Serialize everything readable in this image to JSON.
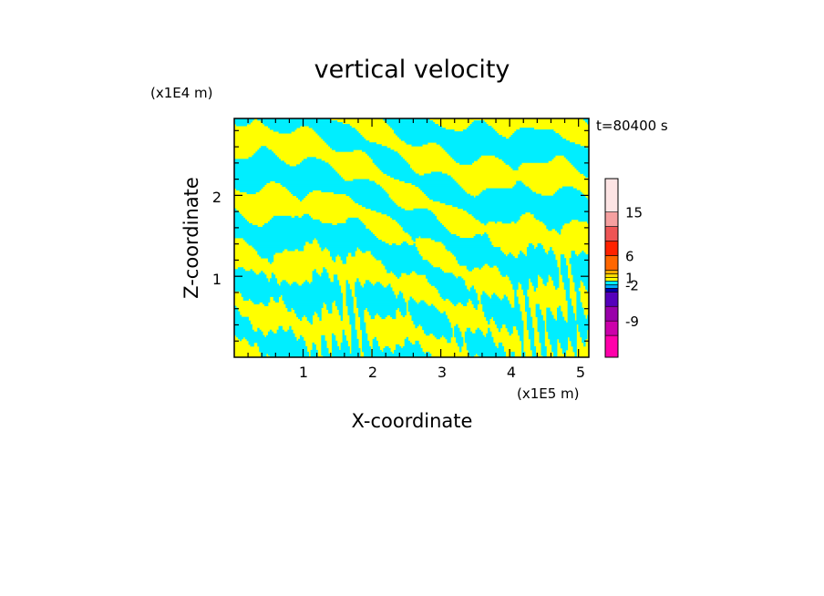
{
  "chart_data": {
    "type": "heatmap",
    "title": "vertical velocity",
    "time_label": "t=80400 s",
    "xlabel": "X-coordinate",
    "ylabel": "Z-coordinate",
    "x_scale_label": "(x1E5 m)",
    "y_scale_label": "(x1E4 m)",
    "xlim": [
      0,
      5.15
    ],
    "ylim": [
      0,
      2.95
    ],
    "x_ticks": [
      "1",
      "2",
      "3",
      "4",
      "5"
    ],
    "y_ticks": [
      "1",
      "2"
    ],
    "field_colors": {
      "positive": "#ffff00",
      "negative": "#00eeff"
    },
    "colorbar": {
      "bands": [
        "#ff00aa",
        "#cc00aa",
        "#9900aa",
        "#5500bb",
        "#0000aa",
        "#00aaff",
        "#00eeff",
        "#ffff00",
        "#ffdd00",
        "#ffaa00",
        "#ff6600",
        "#ff2200",
        "#ee5555",
        "#f5a0a0",
        "#fde4e4"
      ],
      "labels": [
        "-9",
        "-2",
        "1",
        "6",
        "15"
      ],
      "label_band_index": [
        1,
        5,
        7,
        10,
        13
      ]
    }
  }
}
